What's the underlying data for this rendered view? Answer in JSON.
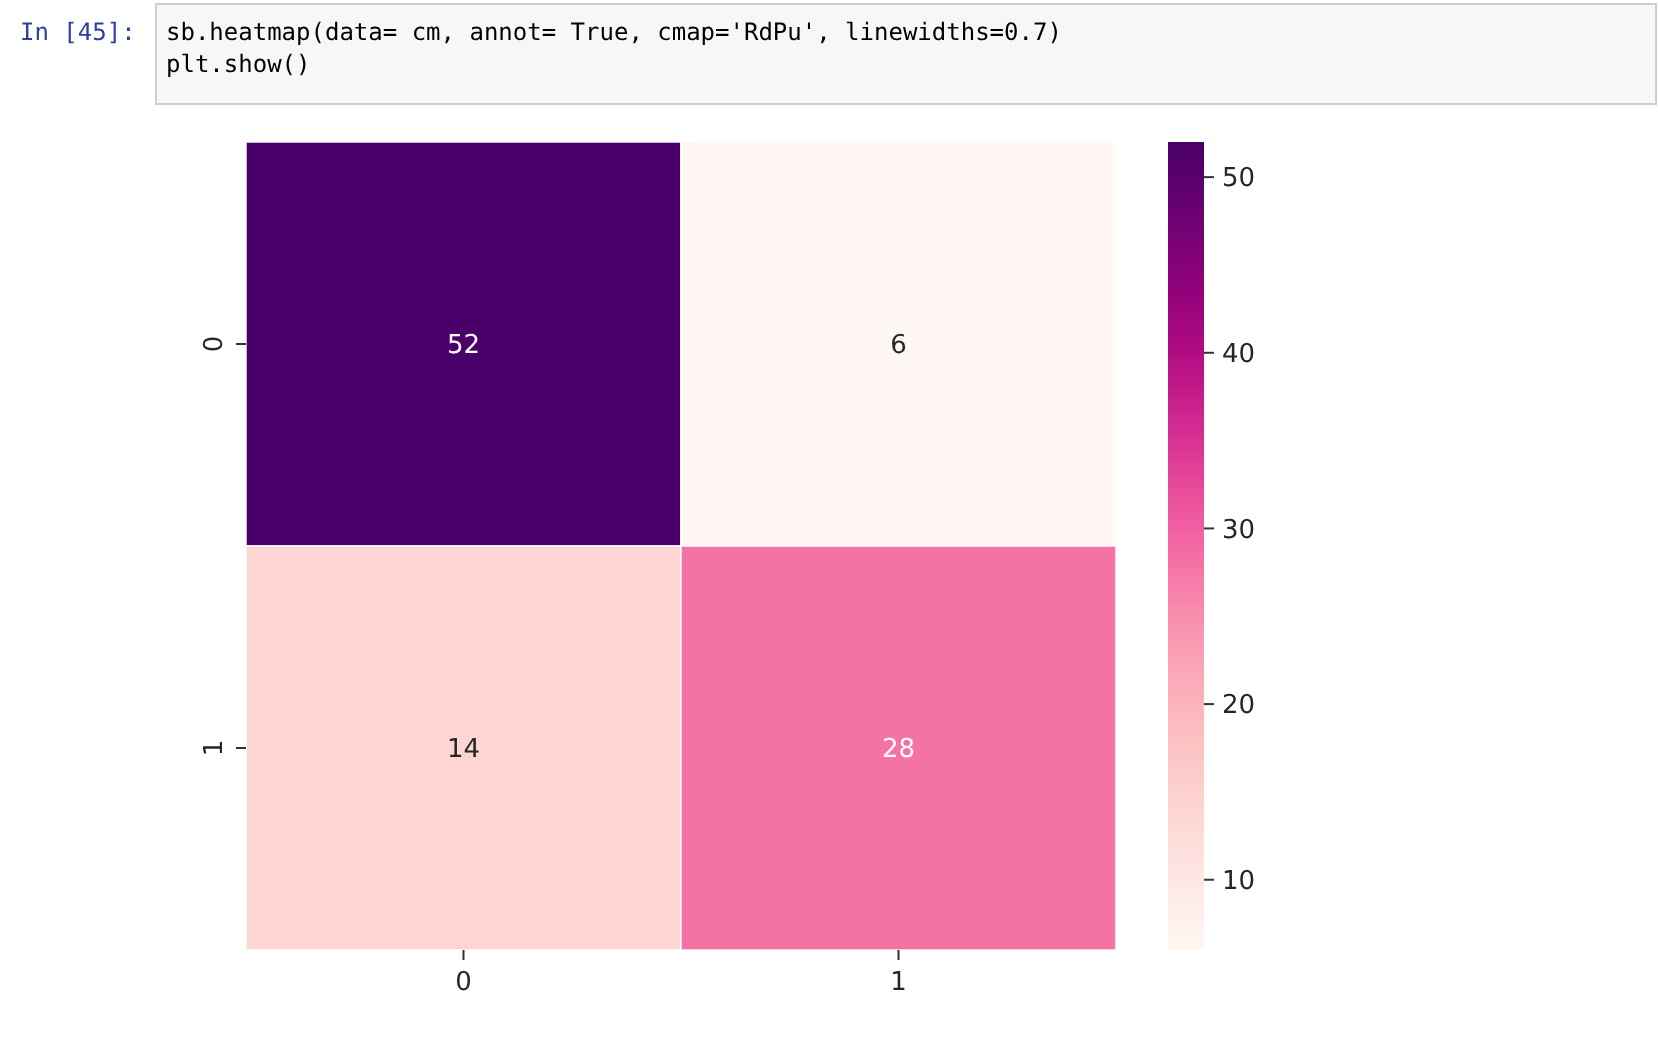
{
  "chart_data": {
    "type": "heatmap",
    "categories": [
      "0",
      "1"
    ],
    "y_categories": [
      "0",
      "1"
    ],
    "cells": [
      [
        52,
        6
      ],
      [
        14,
        28
      ]
    ],
    "clim": [
      6,
      52
    ],
    "cticks": [
      10,
      20,
      30,
      40,
      50
    ],
    "data_labels": true,
    "annotations": [
      "In [45]:",
      "sb.heatmap(data= cm, annot= True, cmap='RdPu', linewidths=0.7)",
      "plt.show()"
    ]
  }
}
